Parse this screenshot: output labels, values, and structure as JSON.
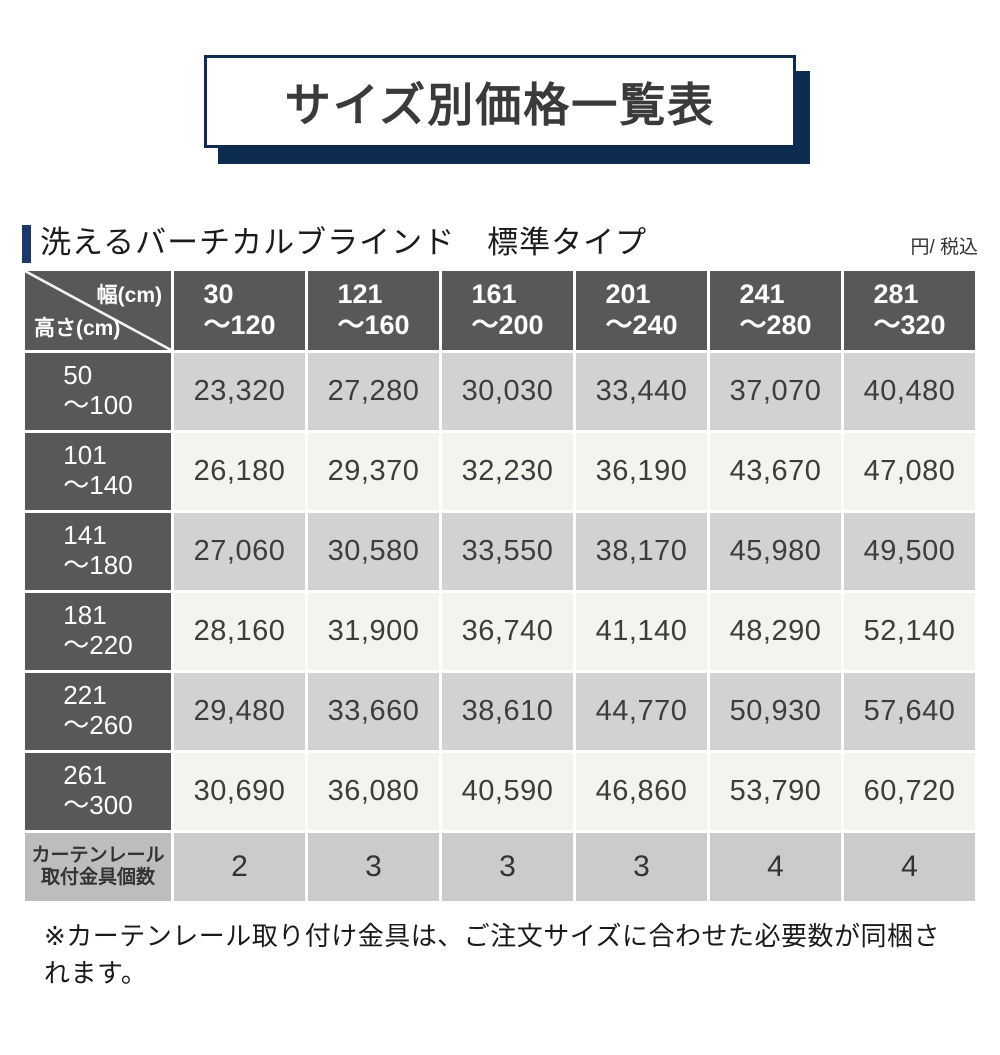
{
  "banner": {
    "title": "サイズ別価格一覧表"
  },
  "section": {
    "title": "洗えるバーチカルブラインド　標準タイプ",
    "unit_note": "円/ 税込"
  },
  "table": {
    "corner": {
      "col_axis": "幅(cm)",
      "row_axis": "高さ(cm)"
    },
    "columns": [
      "30\n〜120",
      "121\n〜160",
      "161\n〜200",
      "201\n〜240",
      "241\n〜280",
      "281\n〜320"
    ],
    "rows": [
      {
        "label": "50\n〜100",
        "values": [
          "23,320",
          "27,280",
          "30,030",
          "33,440",
          "37,070",
          "40,480"
        ]
      },
      {
        "label": "101\n〜140",
        "values": [
          "26,180",
          "29,370",
          "32,230",
          "36,190",
          "43,670",
          "47,080"
        ]
      },
      {
        "label": "141\n〜180",
        "values": [
          "27,060",
          "30,580",
          "33,550",
          "38,170",
          "45,980",
          "49,500"
        ]
      },
      {
        "label": "181\n〜220",
        "values": [
          "28,160",
          "31,900",
          "36,740",
          "41,140",
          "48,290",
          "52,140"
        ]
      },
      {
        "label": "221\n〜260",
        "values": [
          "29,480",
          "33,660",
          "38,610",
          "44,770",
          "50,930",
          "57,640"
        ]
      },
      {
        "label": "261\n〜300",
        "values": [
          "30,690",
          "36,080",
          "40,590",
          "46,860",
          "53,790",
          "60,720"
        ]
      }
    ],
    "hardware_row": {
      "label": "カーテンレール\n取付金具個数",
      "values": [
        "2",
        "3",
        "3",
        "3",
        "4",
        "4"
      ]
    }
  },
  "footnote": "※カーテンレール取り付け金具は、ご注文サイズに合わせた必要数が同梱されます。",
  "colors": {
    "navy": "#0e2b50",
    "accent": "#1c3866",
    "header_bg": "#595757",
    "row_gray": "#d2d2d0",
    "row_cream": "#f4f3ee",
    "hardware_label_bg": "#bdbdbd",
    "hardware_bg": "#cbcbca"
  }
}
